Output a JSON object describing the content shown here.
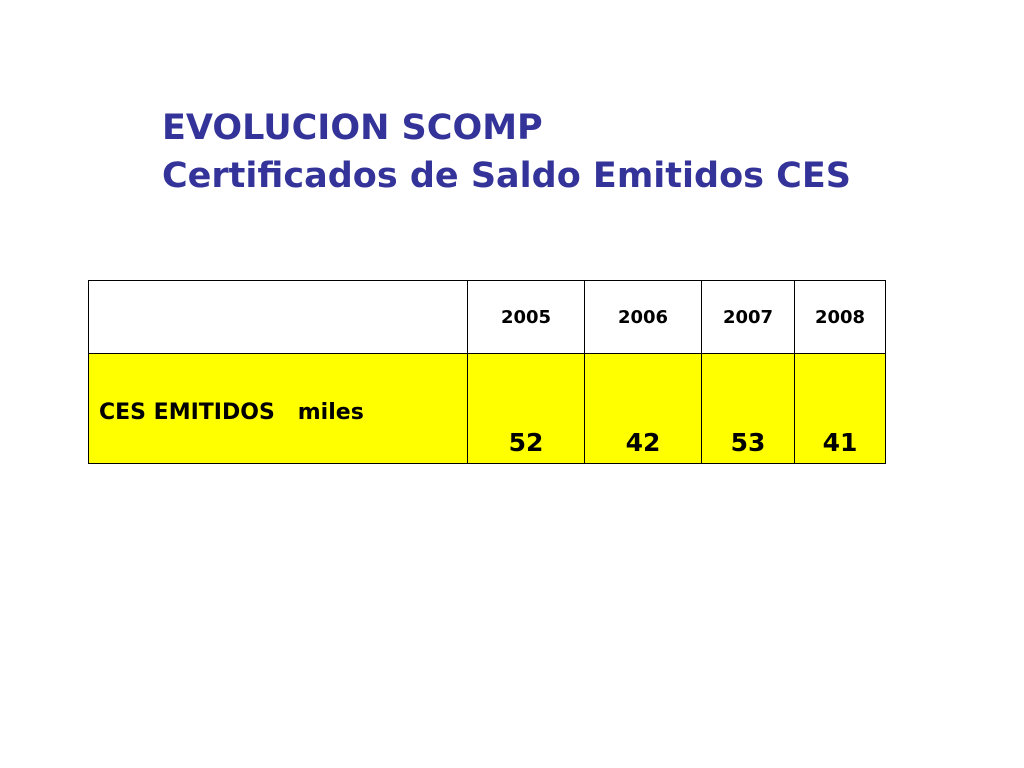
{
  "title": {
    "line1": "EVOLUCION SCOMP",
    "line2": "Certificados de Saldo Emitidos CES"
  },
  "colors": {
    "title": "#333399",
    "row_highlight": "#ffff00"
  },
  "table": {
    "header_label": "",
    "years": [
      "2005",
      "2006",
      "2007",
      "2008"
    ],
    "rows": [
      {
        "label": "CES EMITIDOS   miles",
        "values": [
          "52",
          "42",
          "53",
          "41"
        ]
      }
    ]
  },
  "chart_data": {
    "type": "table",
    "categories": [
      "2005",
      "2006",
      "2007",
      "2008"
    ],
    "series": [
      {
        "name": "CES EMITIDOS   miles",
        "values": [
          52,
          42,
          53,
          41
        ]
      }
    ]
  }
}
